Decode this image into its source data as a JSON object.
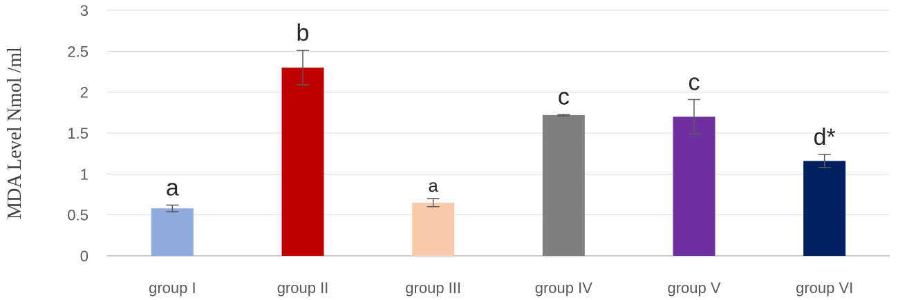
{
  "chart_data": {
    "type": "bar",
    "title": "",
    "xlabel": "",
    "ylabel": "MDA Level Nmol /ml",
    "ylim": [
      0,
      3
    ],
    "yticks": [
      "0",
      "0.5",
      "1",
      "1.5",
      "2",
      "2.5",
      "3"
    ],
    "grid": true,
    "categories": [
      "group I",
      "group II",
      "group III",
      "group IV",
      "group V",
      "group VI"
    ],
    "values": [
      0.58,
      2.3,
      0.65,
      1.72,
      1.7,
      1.16
    ],
    "errors": [
      0.04,
      0.21,
      0.05,
      0.01,
      0.21,
      0.08
    ],
    "significance_labels": [
      "a",
      "b",
      "a",
      "c",
      "c",
      "d*"
    ],
    "colors": [
      "#8faadc",
      "#c00000",
      "#f8cbad",
      "#7f7f7f",
      "#7030a0",
      "#002060"
    ]
  }
}
